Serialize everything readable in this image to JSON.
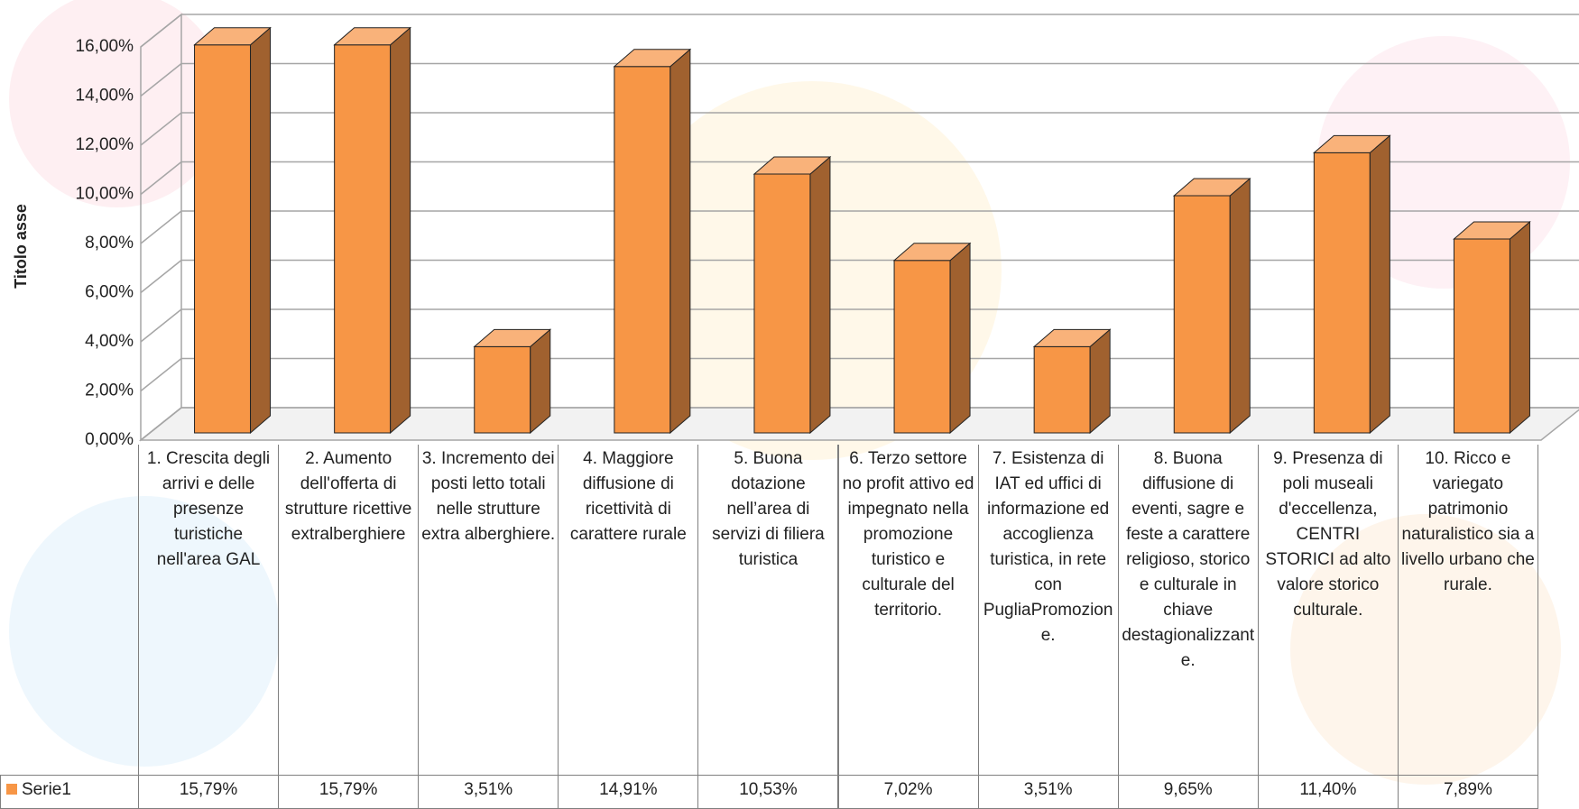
{
  "chart_data": {
    "type": "bar3d",
    "y_axis_title": "Titolo asse",
    "categories": [
      "1. Crescita degli arrivi e delle presenze turistiche nell'area GAL",
      "2. Aumento dell'offerta di strutture ricettive extralberghiere",
      "3. Incremento dei posti letto totali nelle strutture extra alberghiere.",
      "4. Maggiore diffusione di ricettività di carattere rurale",
      "5. Buona dotazione nell’area di servizi di filiera turistica",
      "6. Terzo settore no profit attivo ed impegnato nella promozione turistico e culturale del territorio.",
      "7. Esistenza di IAT ed uffici di informazione ed accoglienza turistica, in rete con PugliaPromozione.",
      "8. Buona diffusione di eventi, sagre e feste a carattere religioso, storico e culturale in chiave destagionalizzante.",
      "9. Presenza di poli museali d'eccellenza, CENTRI STORICI ad alto valore storico culturale.",
      "10. Ricco e variegato patrimonio naturalistico sia a livello urbano che rurale."
    ],
    "series": [
      {
        "name": "Serie1",
        "color": "#f79646",
        "values": [
          15.79,
          15.79,
          3.51,
          14.91,
          10.53,
          7.02,
          3.51,
          9.65,
          11.4,
          7.89
        ],
        "value_labels": [
          "15,79%",
          "15,79%",
          "3,51%",
          "14,91%",
          "10,53%",
          "7,02%",
          "3,51%",
          "9,65%",
          "11,40%",
          "7,89%"
        ]
      }
    ],
    "ylim": [
      0,
      16
    ],
    "yticks": [
      {
        "value": 0,
        "label": "0,00%"
      },
      {
        "value": 2,
        "label": "2,00%"
      },
      {
        "value": 4,
        "label": "4,00%"
      },
      {
        "value": 6,
        "label": "6,00%"
      },
      {
        "value": 8,
        "label": "8,00%"
      },
      {
        "value": 10,
        "label": "10,00%"
      },
      {
        "value": 12,
        "label": "12,00%"
      },
      {
        "value": 14,
        "label": "14,00%"
      },
      {
        "value": 16,
        "label": "16,00%"
      }
    ],
    "grid": true
  }
}
